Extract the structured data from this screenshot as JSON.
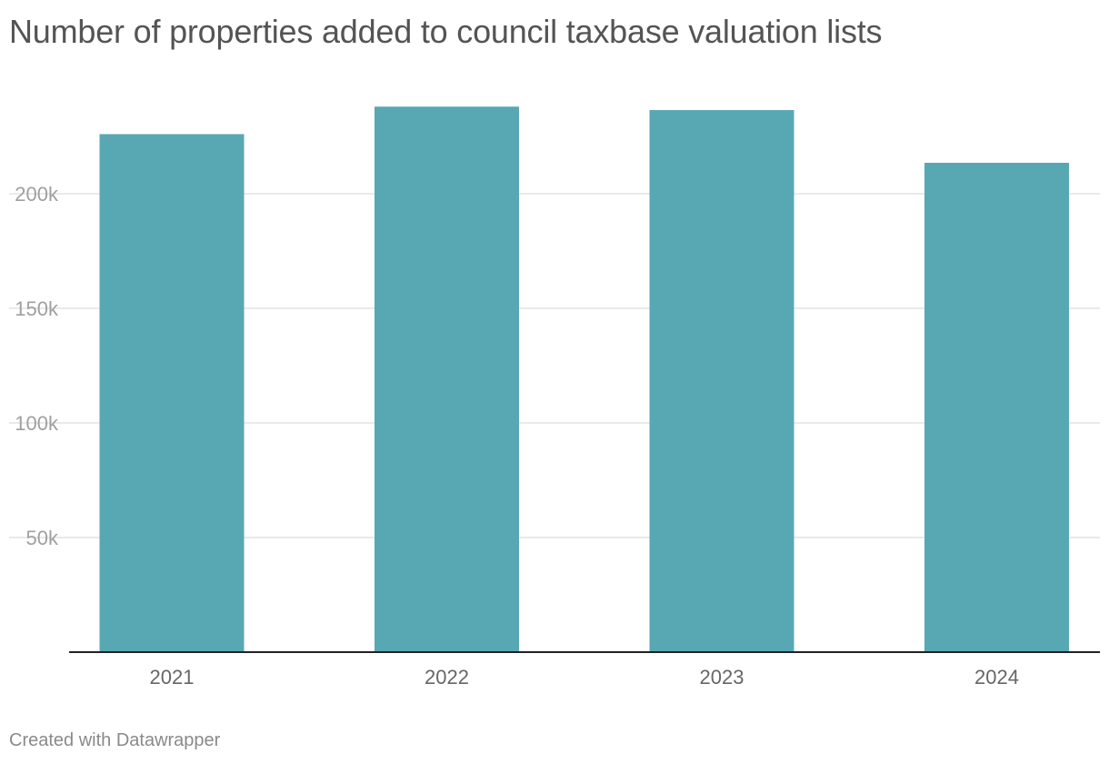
{
  "title": "Number of properties added to council taxbase valuation lists",
  "credit": "Created with Datawrapper",
  "colors": {
    "bar": "#58a8b4",
    "grid": "#e4e4e4",
    "baseline": "#222222"
  },
  "chart_data": {
    "type": "bar",
    "title": "Number of properties added to council taxbase valuation lists",
    "categories": [
      "2021",
      "2022",
      "2023",
      "2024"
    ],
    "values": [
      226000,
      238000,
      236500,
      213500
    ],
    "ylim": [
      0,
      240000
    ],
    "yticks": [
      {
        "value": 50000,
        "label": "50k"
      },
      {
        "value": 100000,
        "label": "100k"
      },
      {
        "value": 150000,
        "label": "150k"
      },
      {
        "value": 200000,
        "label": "200k"
      }
    ],
    "grid": true,
    "legend": "none"
  }
}
